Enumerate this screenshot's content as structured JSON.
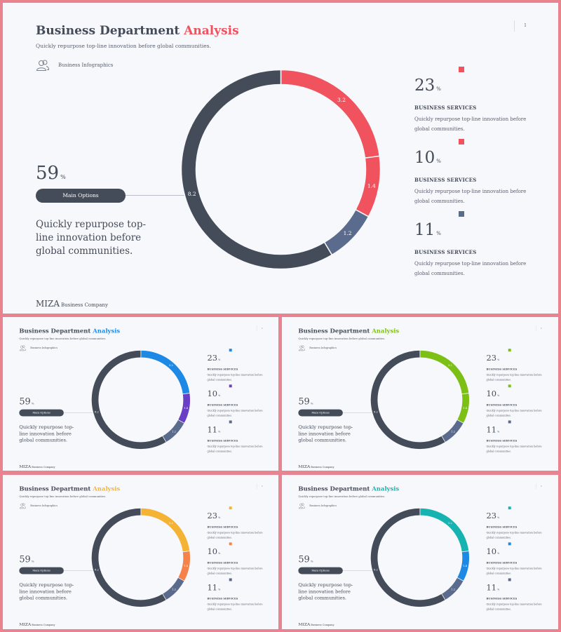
{
  "slides": [
    {
      "id": "main",
      "accent": "#f0525e",
      "second": "#f0525e",
      "title_prefix": "Business Department ",
      "title_accent": "Analysis",
      "subtitle": "Quickly repurpose top-line innovation before global communities.",
      "page_number": "1",
      "infographics_label": "Business Infographics",
      "big_value": "59",
      "big_unit": "%",
      "main_options_label": "Main Options",
      "left_text": "Quickly repurpose top-line innovation before global communities.",
      "brand_logo": "MIZA",
      "brand_company": "Business Company",
      "icon_name": "users-icon",
      "stats": [
        {
          "value": "23",
          "unit": "%",
          "label": "BUSINESS SERVICES",
          "desc": "Quickly repurpose top-line innovation before global communities.",
          "color": "#f0525e"
        },
        {
          "value": "10",
          "unit": "%",
          "label": "BUSINESS SERVICES",
          "desc": "Quickly repurpose top-line innovation before global communities.",
          "color": "#f0525e"
        },
        {
          "value": "11",
          "unit": "%",
          "label": "BUSINESS SERVICES",
          "desc": "Quickly repurpose top-line innovation before global communities.",
          "color": "#5b6b8e"
        }
      ],
      "chart_data": {
        "type": "pie",
        "values": [
          3.2,
          1.4,
          1.2,
          8.2
        ],
        "labels": [
          "3.2",
          "1.4",
          "1.2",
          "8.2"
        ]
      }
    },
    {
      "id": "blue",
      "accent": "#1e88e5",
      "second": "#6a3fc6",
      "title_prefix": "Business Department ",
      "title_accent": "Analysis",
      "subtitle": "Quickly repurpose top-line innovation before global communities.",
      "page_number": "1",
      "infographics_label": "Business Infographics",
      "big_value": "59",
      "big_unit": "%",
      "main_options_label": "Main Options",
      "left_text": "Quickly repurpose top-line innovation before global communities.",
      "brand_logo": "MIZA",
      "brand_company": "Business Company",
      "icon_name": "users-icon",
      "stats": [
        {
          "value": "23",
          "unit": "%",
          "label": "BUSINESS SERVICES",
          "desc": "Quickly repurpose top-line innovation before global communities.",
          "color": "#1e88e5"
        },
        {
          "value": "10",
          "unit": "%",
          "label": "BUSINESS SERVICES",
          "desc": "Quickly repurpose top-line innovation before global communities.",
          "color": "#6a3fc6"
        },
        {
          "value": "11",
          "unit": "%",
          "label": "BUSINESS SERVICES",
          "desc": "Quickly repurpose top-line innovation before global communities.",
          "color": "#5b6b8e"
        }
      ],
      "chart_data": {
        "type": "pie",
        "values": [
          3.2,
          1.4,
          1.2,
          8.2
        ],
        "labels": [
          "3.2",
          "1.4",
          "1.2",
          "8.2"
        ]
      }
    },
    {
      "id": "green",
      "accent": "#7cc016",
      "second": "#7cc016",
      "title_prefix": "Business Department ",
      "title_accent": "Analysis",
      "subtitle": "Quickly repurpose top-line innovation before global communities.",
      "page_number": "1",
      "infographics_label": "Business Infographics",
      "big_value": "59",
      "big_unit": "%",
      "main_options_label": "Main Options",
      "left_text": "Quickly repurpose top-line innovation before global communities.",
      "brand_logo": "MIZA",
      "brand_company": "Business Company",
      "icon_name": "users-icon",
      "stats": [
        {
          "value": "23",
          "unit": "%",
          "label": "BUSINESS SERVICES",
          "desc": "Quickly repurpose top-line innovation before global communities.",
          "color": "#7cc016"
        },
        {
          "value": "10",
          "unit": "%",
          "label": "BUSINESS SERVICES",
          "desc": "Quickly repurpose top-line innovation before global communities.",
          "color": "#7cc016"
        },
        {
          "value": "11",
          "unit": "%",
          "label": "BUSINESS SERVICES",
          "desc": "Quickly repurpose top-line innovation before global communities.",
          "color": "#5b6b8e"
        }
      ],
      "chart_data": {
        "type": "pie",
        "values": [
          3.2,
          1.4,
          1.2,
          8.2
        ],
        "labels": [
          "3.2",
          "1.4",
          "1.2",
          "8.2"
        ]
      }
    },
    {
      "id": "yellow",
      "accent": "#f5b335",
      "second": "#f5824a",
      "title_prefix": "Business Department ",
      "title_accent": "Analysis",
      "subtitle": "Quickly repurpose top-line innovation before global communities.",
      "page_number": "1",
      "infographics_label": "Business Infographics",
      "big_value": "59",
      "big_unit": "%",
      "main_options_label": "Main Options",
      "left_text": "Quickly repurpose top-line innovation before global communities.",
      "brand_logo": "MIZA",
      "brand_company": "Business Company",
      "icon_name": "users-icon",
      "stats": [
        {
          "value": "23",
          "unit": "%",
          "label": "BUSINESS SERVICES",
          "desc": "Quickly repurpose top-line innovation before global communities.",
          "color": "#f5b335"
        },
        {
          "value": "10",
          "unit": "%",
          "label": "BUSINESS SERVICES",
          "desc": "Quickly repurpose top-line innovation before global communities.",
          "color": "#f5824a"
        },
        {
          "value": "11",
          "unit": "%",
          "label": "BUSINESS SERVICES",
          "desc": "Quickly repurpose top-line innovation before global communities.",
          "color": "#5b6b8e"
        }
      ],
      "chart_data": {
        "type": "pie",
        "values": [
          3.2,
          1.4,
          1.2,
          8.2
        ],
        "labels": [
          "3.2",
          "1.4",
          "1.2",
          "8.2"
        ]
      }
    },
    {
      "id": "teal",
      "accent": "#17b3b0",
      "second": "#1e88e5",
      "title_prefix": "Business Department ",
      "title_accent": "Analysis",
      "subtitle": "Quickly repurpose top-line innovation before global communities.",
      "page_number": "1",
      "infographics_label": "Business Infographics",
      "big_value": "59",
      "big_unit": "%",
      "main_options_label": "Main Options",
      "left_text": "Quickly repurpose top-line innovation before global communities.",
      "brand_logo": "MIZA",
      "brand_company": "Business Company",
      "icon_name": "users-icon",
      "stats": [
        {
          "value": "23",
          "unit": "%",
          "label": "BUSINESS SERVICES",
          "desc": "Quickly repurpose top-line innovation before global communities.",
          "color": "#17b3b0"
        },
        {
          "value": "10",
          "unit": "%",
          "label": "BUSINESS SERVICES",
          "desc": "Quickly repurpose top-line innovation before global communities.",
          "color": "#1e88e5"
        },
        {
          "value": "11",
          "unit": "%",
          "label": "BUSINESS SERVICES",
          "desc": "Quickly repurpose top-line innovation before global communities.",
          "color": "#5b6b8e"
        }
      ],
      "chart_data": {
        "type": "pie",
        "values": [
          3.2,
          1.4,
          1.2,
          8.2
        ],
        "labels": [
          "3.2",
          "1.4",
          "1.2",
          "8.2"
        ]
      }
    }
  ],
  "colors": {
    "dark": "#444b59",
    "slate": "#5b6b8e",
    "background": "#f7f8fb",
    "frame": "#e8838f"
  }
}
